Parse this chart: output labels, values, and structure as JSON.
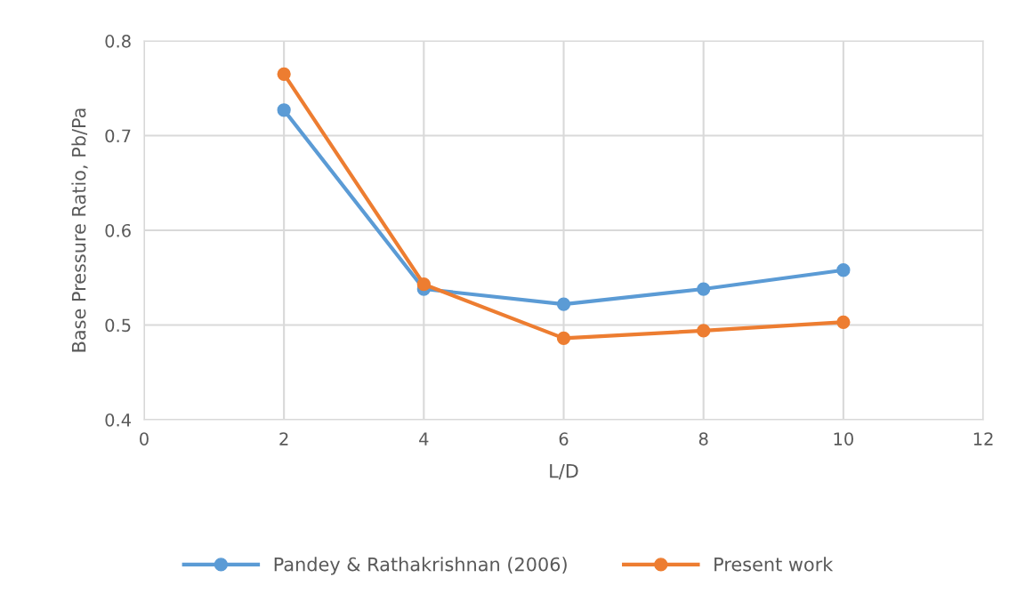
{
  "chart_data": {
    "type": "line",
    "xlabel": "L/D",
    "ylabel": "Base Pressure Ratio, Pb/Pa",
    "x": [
      2,
      4,
      6,
      8,
      10
    ],
    "series": [
      {
        "name": "Pandey & Rathakrishnan (2006)",
        "color": "#5b9bd5",
        "values": [
          0.727,
          0.538,
          0.522,
          0.538,
          0.558
        ]
      },
      {
        "name": "Present work",
        "color": "#ed7d31",
        "values": [
          0.765,
          0.543,
          0.486,
          0.494,
          0.503
        ]
      }
    ],
    "xlim": [
      0,
      12
    ],
    "xticks": [
      0,
      2,
      4,
      6,
      8,
      10,
      12
    ],
    "ylim": [
      0.4,
      0.8
    ],
    "yticks": [
      0.4,
      0.5,
      0.6,
      0.7,
      0.8
    ],
    "grid": true,
    "legend": "bottom",
    "marker": "circle",
    "line_style": "solid"
  }
}
